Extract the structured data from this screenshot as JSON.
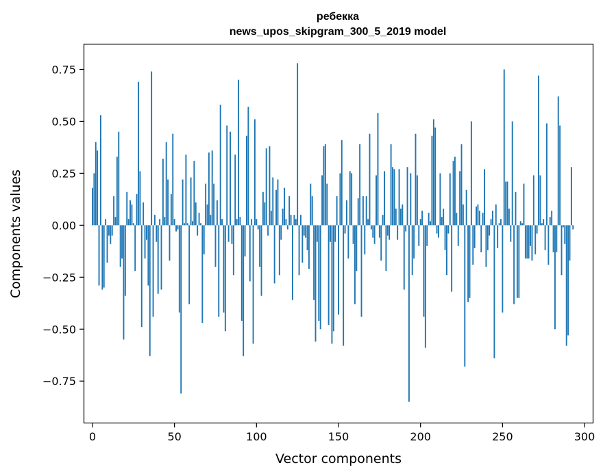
{
  "chart_data": {
    "type": "bar",
    "title": "ребекка",
    "subtitle": "news_upos_skipgram_300_5_2019 model",
    "xlabel": "Vector components",
    "ylabel": "Components values",
    "xlim": [
      -5,
      305
    ],
    "ylim": [
      -0.95,
      0.87
    ],
    "xticks": [
      0,
      50,
      100,
      150,
      200,
      250,
      300
    ],
    "yticks": [
      -0.75,
      -0.5,
      -0.25,
      0.0,
      0.25,
      0.5,
      0.75
    ],
    "ytick_labels": [
      "−0.75",
      "−0.50",
      "−0.25",
      "0.00",
      "0.25",
      "0.50",
      "0.75"
    ],
    "bar_color": "#1f77b4",
    "grid": false,
    "values": [
      0.18,
      0.25,
      0.4,
      0.36,
      -0.29,
      0.53,
      -0.31,
      -0.3,
      0.03,
      -0.18,
      -0.05,
      -0.09,
      -0.05,
      0.14,
      0.04,
      0.33,
      0.45,
      -0.2,
      -0.16,
      -0.55,
      -0.34,
      0.16,
      0.03,
      0.12,
      0.1,
      0.01,
      -0.22,
      0.15,
      0.69,
      0.26,
      -0.49,
      0.11,
      -0.16,
      -0.07,
      -0.29,
      -0.63,
      0.74,
      -0.44,
      0.05,
      -0.08,
      -0.33,
      0.03,
      -0.31,
      0.32,
      0.04,
      0.4,
      0.22,
      -0.17,
      0.15,
      0.44,
      0.03,
      -0.03,
      -0.02,
      -0.42,
      -0.81,
      0.22,
      0.01,
      0.34,
      0.01,
      -0.38,
      0.23,
      0.02,
      0.31,
      0.11,
      -0.05,
      0.06,
      0.01,
      -0.47,
      -0.14,
      0.2,
      0.1,
      0.35,
      0.05,
      0.36,
      0.2,
      -0.2,
      0.12,
      -0.44,
      0.58,
      0.03,
      -0.42,
      -0.51,
      0.48,
      -0.08,
      0.45,
      -0.09,
      -0.24,
      0.34,
      0.03,
      0.7,
      0.04,
      -0.46,
      -0.63,
      -0.15,
      0.43,
      0.57,
      -0.27,
      0.03,
      -0.57,
      0.51,
      0.03,
      -0.02,
      -0.2,
      -0.34,
      0.16,
      0.11,
      0.37,
      -0.05,
      0.38,
      0.07,
      0.23,
      -0.28,
      0.17,
      0.22,
      -0.24,
      -0.07,
      0.08,
      0.18,
      0.03,
      -0.02,
      0.14,
      0.05,
      -0.36,
      0.05,
      0.03,
      0.78,
      -0.24,
      0.05,
      -0.18,
      -0.05,
      -0.06,
      -0.12,
      -0.21,
      0.2,
      0.14,
      -0.36,
      -0.56,
      -0.08,
      -0.46,
      -0.5,
      0.24,
      0.38,
      0.39,
      0.2,
      -0.48,
      -0.08,
      -0.57,
      -0.51,
      -0.08,
      0.14,
      -0.43,
      0.25,
      0.41,
      -0.58,
      -0.04,
      0.12,
      -0.16,
      0.26,
      0.25,
      -0.09,
      -0.38,
      -0.22,
      0.13,
      0.39,
      -0.44,
      0.14,
      -0.14,
      0.14,
      0.03,
      0.44,
      -0.02,
      -0.06,
      -0.09,
      0.24,
      0.54,
      -0.06,
      -0.17,
      0.05,
      0.26,
      -0.22,
      -0.05,
      -0.07,
      0.39,
      0.28,
      0.27,
      0.08,
      -0.07,
      0.27,
      0.08,
      0.1,
      -0.31,
      -0.03,
      0.28,
      -0.85,
      0.25,
      -0.24,
      -0.16,
      0.44,
      0.24,
      -0.1,
      0.03,
      0.07,
      -0.44,
      -0.59,
      -0.1,
      0.06,
      0.02,
      0.43,
      0.51,
      0.47,
      -0.04,
      -0.06,
      0.25,
      0.04,
      0.08,
      -0.12,
      -0.24,
      -0.04,
      0.25,
      -0.32,
      0.31,
      0.33,
      0.06,
      -0.1,
      0.26,
      0.39,
      0.1,
      -0.68,
      0.17,
      -0.37,
      -0.35,
      0.5,
      -0.19,
      -0.11,
      0.09,
      0.1,
      0.07,
      -0.13,
      0.06,
      0.27,
      -0.2,
      -0.12,
      -0.05,
      0.03,
      0.07,
      -0.64,
      0.1,
      -0.11,
      0.01,
      0.03,
      -0.42,
      0.75,
      0.21,
      0.21,
      0.08,
      -0.08,
      0.5,
      -0.38,
      0.16,
      -0.35,
      -0.35,
      0.02,
      0.01,
      0.2,
      -0.16,
      -0.16,
      -0.16,
      -0.1,
      -0.17,
      0.24,
      -0.14,
      -0.04,
      0.72,
      0.24,
      0.01,
      0.03,
      -0.12,
      0.49,
      -0.19,
      0.04,
      0.07,
      -0.13,
      -0.5,
      -0.13,
      0.62,
      0.48,
      -0.24,
      -0.01,
      -0.09,
      -0.58,
      -0.53,
      -0.17,
      0.28,
      -0.02
    ]
  }
}
